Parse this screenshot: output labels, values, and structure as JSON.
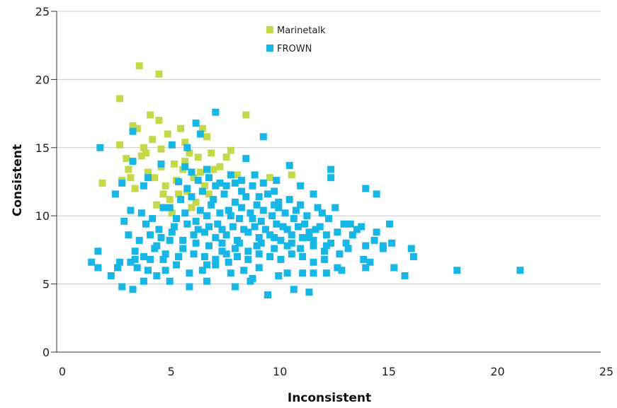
{
  "chart_data": {
    "type": "scatter",
    "title": "",
    "xlabel": "Inconsistent",
    "ylabel": "Consistent",
    "xlim": [
      0,
      25
    ],
    "ylim": [
      0,
      25
    ],
    "xticks": [
      "0",
      "5",
      "10",
      "15",
      "20",
      "25"
    ],
    "yticks": [
      "0",
      "5",
      "10",
      "15",
      "20",
      "25"
    ],
    "grid": "horizontal",
    "legend_position": "top-center",
    "series": [
      {
        "name": "Marinetalk",
        "color": "#c5d84a",
        "points": [
          [
            3.8,
            21.0
          ],
          [
            4.7,
            20.4
          ],
          [
            2.9,
            18.6
          ],
          [
            2.9,
            15.2
          ],
          [
            3.5,
            16.6
          ],
          [
            4.0,
            15.0
          ],
          [
            4.4,
            15.6
          ],
          [
            4.7,
            17.0
          ],
          [
            4.8,
            14.9
          ],
          [
            5.1,
            16.0
          ],
          [
            5.7,
            16.4
          ],
          [
            5.9,
            15.4
          ],
          [
            6.1,
            14.6
          ],
          [
            6.5,
            14.3
          ],
          [
            6.9,
            15.8
          ],
          [
            7.1,
            14.6
          ],
          [
            4.3,
            17.4
          ],
          [
            3.7,
            16.4
          ],
          [
            2.1,
            12.4
          ],
          [
            3.0,
            12.6
          ],
          [
            3.3,
            13.4
          ],
          [
            3.6,
            12.0
          ],
          [
            3.9,
            14.4
          ],
          [
            4.2,
            13.2
          ],
          [
            4.5,
            12.8
          ],
          [
            4.8,
            13.6
          ],
          [
            5.0,
            12.2
          ],
          [
            5.2,
            11.2
          ],
          [
            5.5,
            12.6
          ],
          [
            5.8,
            13.4
          ],
          [
            6.0,
            11.8
          ],
          [
            6.3,
            12.8
          ],
          [
            6.6,
            13.2
          ],
          [
            6.8,
            12.2
          ],
          [
            7.2,
            13.4
          ],
          [
            7.5,
            13.6
          ],
          [
            7.8,
            14.3
          ],
          [
            8.0,
            14.8
          ],
          [
            8.3,
            13.0
          ],
          [
            8.7,
            17.4
          ],
          [
            4.6,
            10.8
          ],
          [
            5.3,
            10.2
          ],
          [
            6.2,
            10.6
          ],
          [
            7.0,
            11.6
          ],
          [
            5.6,
            11.6
          ],
          [
            6.4,
            11.0
          ],
          [
            4.9,
            11.6
          ],
          [
            3.4,
            12.8
          ],
          [
            9.8,
            12.8
          ],
          [
            9.6,
            9.0
          ],
          [
            10.8,
            13.0
          ],
          [
            5.4,
            13.8
          ],
          [
            6.7,
            16.4
          ],
          [
            4.1,
            14.6
          ],
          [
            3.2,
            14.2
          ],
          [
            5.9,
            14.0
          ]
        ]
      },
      {
        "name": "FROWN",
        "color": "#16b7e6",
        "points": [
          [
            7.3,
            17.6
          ],
          [
            6.4,
            16.8
          ],
          [
            9.5,
            15.8
          ],
          [
            2.0,
            15.0
          ],
          [
            3.5,
            16.2
          ],
          [
            6.6,
            16.0
          ],
          [
            8.7,
            14.2
          ],
          [
            5.3,
            15.2
          ],
          [
            6.0,
            15.0
          ],
          [
            10.7,
            13.7
          ],
          [
            12.6,
            13.4
          ],
          [
            12.6,
            12.8
          ],
          [
            14.2,
            12.0
          ],
          [
            14.7,
            11.6
          ],
          [
            12.8,
            10.6
          ],
          [
            11.8,
            11.6
          ],
          [
            10.1,
            12.6
          ],
          [
            9.1,
            13.0
          ],
          [
            8.2,
            12.4
          ],
          [
            7.3,
            12.2
          ],
          [
            6.2,
            13.2
          ],
          [
            5.6,
            12.5
          ],
          [
            4.0,
            12.2
          ],
          [
            3.0,
            12.4
          ],
          [
            2.7,
            11.6
          ],
          [
            3.5,
            14.0
          ],
          [
            4.2,
            12.8
          ],
          [
            4.8,
            13.8
          ],
          [
            5.9,
            13.6
          ],
          [
            6.9,
            13.4
          ],
          [
            7.8,
            12.2
          ],
          [
            8.5,
            11.8
          ],
          [
            9.3,
            11.4
          ],
          [
            10.2,
            11.0
          ],
          [
            11.2,
            10.8
          ],
          [
            12.2,
            10.2
          ],
          [
            13.2,
            9.4
          ],
          [
            14.0,
            9.2
          ],
          [
            14.7,
            8.8
          ],
          [
            15.3,
            9.4
          ],
          [
            16.3,
            7.6
          ],
          [
            16.4,
            7.0
          ],
          [
            15.0,
            7.6
          ],
          [
            14.6,
            8.2
          ],
          [
            14.2,
            7.8
          ],
          [
            13.6,
            8.6
          ],
          [
            13.0,
            7.2
          ],
          [
            12.4,
            7.8
          ],
          [
            11.8,
            8.2
          ],
          [
            11.2,
            7.6
          ],
          [
            10.6,
            7.8
          ],
          [
            10.0,
            8.4
          ],
          [
            9.4,
            8.0
          ],
          [
            8.8,
            7.4
          ],
          [
            8.2,
            7.6
          ],
          [
            7.6,
            7.4
          ],
          [
            7.0,
            7.8
          ],
          [
            6.4,
            8.0
          ],
          [
            5.8,
            7.6
          ],
          [
            5.2,
            8.2
          ],
          [
            4.6,
            7.8
          ],
          [
            4.0,
            7.0
          ],
          [
            3.4,
            6.6
          ],
          [
            2.8,
            6.2
          ],
          [
            1.9,
            7.4
          ],
          [
            1.6,
            6.6
          ],
          [
            1.9,
            6.2
          ],
          [
            2.5,
            5.6
          ],
          [
            3.0,
            4.8
          ],
          [
            3.5,
            4.6
          ],
          [
            4.0,
            5.2
          ],
          [
            4.6,
            5.6
          ],
          [
            5.2,
            5.2
          ],
          [
            6.1,
            4.8
          ],
          [
            6.9,
            5.2
          ],
          [
            8.2,
            4.8
          ],
          [
            8.9,
            5.2
          ],
          [
            9.7,
            4.2
          ],
          [
            10.9,
            4.6
          ],
          [
            11.6,
            4.4
          ],
          [
            12.4,
            5.8
          ],
          [
            13.1,
            6.0
          ],
          [
            14.2,
            6.2
          ],
          [
            15.5,
            6.2
          ],
          [
            16.0,
            5.6
          ],
          [
            18.4,
            6.0
          ],
          [
            21.3,
            6.0
          ],
          [
            11.8,
            5.8
          ],
          [
            10.2,
            5.6
          ],
          [
            9.3,
            6.2
          ],
          [
            8.6,
            6.0
          ],
          [
            7.9,
            6.6
          ],
          [
            7.3,
            6.4
          ],
          [
            6.7,
            6.0
          ],
          [
            6.1,
            5.8
          ],
          [
            5.5,
            6.4
          ],
          [
            4.9,
            6.8
          ],
          [
            4.3,
            6.8
          ],
          [
            3.7,
            6.2
          ],
          [
            3.1,
            9.6
          ],
          [
            3.4,
            10.4
          ],
          [
            3.9,
            10.2
          ],
          [
            4.4,
            9.8
          ],
          [
            4.9,
            10.6
          ],
          [
            5.4,
            9.2
          ],
          [
            5.9,
            10.2
          ],
          [
            6.4,
            9.6
          ],
          [
            6.9,
            10.0
          ],
          [
            7.4,
            9.4
          ],
          [
            7.9,
            10.4
          ],
          [
            8.4,
            9.8
          ],
          [
            8.9,
            10.2
          ],
          [
            9.4,
            9.6
          ],
          [
            9.9,
            10.0
          ],
          [
            10.4,
            9.2
          ],
          [
            10.9,
            9.8
          ],
          [
            11.4,
            9.4
          ],
          [
            11.9,
            9.0
          ],
          [
            12.4,
            8.6
          ],
          [
            12.9,
            8.8
          ],
          [
            13.5,
            9.4
          ],
          [
            3.3,
            8.6
          ],
          [
            3.8,
            8.2
          ],
          [
            4.3,
            8.6
          ],
          [
            4.8,
            8.4
          ],
          [
            5.3,
            8.8
          ],
          [
            5.8,
            8.2
          ],
          [
            6.3,
            8.6
          ],
          [
            6.8,
            8.8
          ],
          [
            7.3,
            8.4
          ],
          [
            7.8,
            8.6
          ],
          [
            8.3,
            8.2
          ],
          [
            8.8,
            8.8
          ],
          [
            9.3,
            8.4
          ],
          [
            9.8,
            8.6
          ],
          [
            10.3,
            8.2
          ],
          [
            10.8,
            8.6
          ],
          [
            11.3,
            8.4
          ],
          [
            11.8,
            7.8
          ],
          [
            12.3,
            7.4
          ],
          [
            6.2,
            11.4
          ],
          [
            6.7,
            11.8
          ],
          [
            7.2,
            11.2
          ],
          [
            7.7,
            11.6
          ],
          [
            8.2,
            11.0
          ],
          [
            8.7,
            11.4
          ],
          [
            9.2,
            10.8
          ],
          [
            9.7,
            11.6
          ],
          [
            10.2,
            10.6
          ],
          [
            10.7,
            11.2
          ],
          [
            11.2,
            12.2
          ],
          [
            5.2,
            10.6
          ],
          [
            5.7,
            11.2
          ],
          [
            6.0,
            12.0
          ],
          [
            6.5,
            12.6
          ],
          [
            7.0,
            12.8
          ],
          [
            7.5,
            12.4
          ],
          [
            8.0,
            13.0
          ],
          [
            8.5,
            12.6
          ],
          [
            9.0,
            12.2
          ],
          [
            9.5,
            12.4
          ],
          [
            10.0,
            11.8
          ],
          [
            6.3,
            7.2
          ],
          [
            6.8,
            7.0
          ],
          [
            7.3,
            6.8
          ],
          [
            7.8,
            7.2
          ],
          [
            8.3,
            7.0
          ],
          [
            8.8,
            6.8
          ],
          [
            9.3,
            7.2
          ],
          [
            9.8,
            7.0
          ],
          [
            10.3,
            6.8
          ],
          [
            10.8,
            7.2
          ],
          [
            11.3,
            7.0
          ],
          [
            11.8,
            6.6
          ],
          [
            12.3,
            6.8
          ],
          [
            5.0,
            7.2
          ],
          [
            4.5,
            7.6
          ],
          [
            3.6,
            7.4
          ],
          [
            2.9,
            6.6
          ],
          [
            7.6,
            9.0
          ],
          [
            8.1,
            9.2
          ],
          [
            8.6,
            9.0
          ],
          [
            9.1,
            9.2
          ],
          [
            9.6,
            9.0
          ],
          [
            10.1,
            9.4
          ],
          [
            10.6,
            9.0
          ],
          [
            11.1,
            9.2
          ],
          [
            11.6,
            8.8
          ],
          [
            12.1,
            9.2
          ],
          [
            6.6,
            10.4
          ],
          [
            7.1,
            10.8
          ],
          [
            8.0,
            10.0
          ],
          [
            9.0,
            9.8
          ],
          [
            10.5,
            10.2
          ],
          [
            11.5,
            10.0
          ],
          [
            12.5,
            9.8
          ],
          [
            13.8,
            9.0
          ],
          [
            15.0,
            7.8
          ],
          [
            14.4,
            6.6
          ],
          [
            13.3,
            8.0
          ],
          [
            4.1,
            9.4
          ],
          [
            4.7,
            9.0
          ],
          [
            5.5,
            9.8
          ],
          [
            6.0,
            9.4
          ],
          [
            6.5,
            9.0
          ],
          [
            7.0,
            9.2
          ],
          [
            7.5,
            10.2
          ],
          [
            8.5,
            10.6
          ],
          [
            9.5,
            10.4
          ],
          [
            10.0,
            10.8
          ],
          [
            11.0,
            10.4
          ],
          [
            12.0,
            10.6
          ],
          [
            3.6,
            6.8
          ],
          [
            4.2,
            6.0
          ],
          [
            5.0,
            6.0
          ],
          [
            5.6,
            7.0
          ],
          [
            6.9,
            6.4
          ],
          [
            7.6,
            8.0
          ],
          [
            8.4,
            8.0
          ],
          [
            9.2,
            7.8
          ],
          [
            10.0,
            7.6
          ],
          [
            10.8,
            8.0
          ],
          [
            11.6,
            8.4
          ],
          [
            12.6,
            8.0
          ],
          [
            13.4,
            7.6
          ],
          [
            8.0,
            5.8
          ],
          [
            9.0,
            5.4
          ],
          [
            10.6,
            5.8
          ],
          [
            11.3,
            5.8
          ],
          [
            12.9,
            6.2
          ],
          [
            14.1,
            6.8
          ],
          [
            15.4,
            8.0
          ]
        ]
      }
    ]
  }
}
